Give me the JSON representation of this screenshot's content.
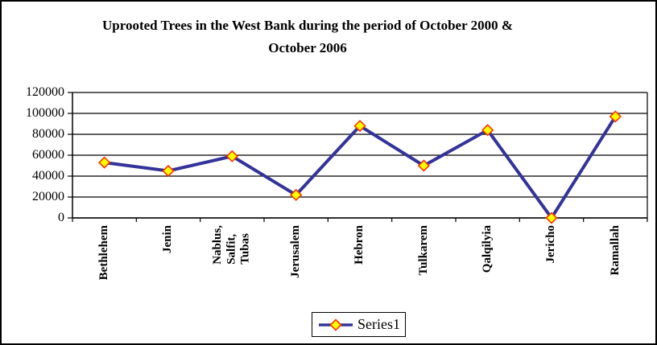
{
  "chart_data": {
    "type": "line",
    "title": "Uprooted Trees in the West Bank during the period of October 2000 & October 2006",
    "title_lines": [
      "Uprooted Trees in the West Bank during the period of October 2000 &",
      "October 2006"
    ],
    "categories": [
      "Bethlehem",
      "Jenin",
      "Nablus, Salfit, Tubas",
      "Jerusalem",
      "Hebron",
      "Tulkarem",
      "Qalqilyia",
      "Jericho",
      "Ramallah"
    ],
    "categories_display": [
      "Bethlehem",
      "Jenin",
      "Nablus,\nSalfit,\nTubas",
      "Jerusalem",
      "Hebron",
      "Tulkarem",
      "Qalqilyia",
      "Jericho",
      "Ramallah"
    ],
    "series": [
      {
        "name": "Series1",
        "values": [
          53000,
          45000,
          59000,
          22000,
          88000,
          50000,
          84000,
          0,
          97000
        ]
      }
    ],
    "xlabel": "",
    "ylabel": "",
    "ylim": [
      0,
      120000
    ],
    "ytick_interval": 20000,
    "ytick_labels": [
      "120000",
      "100000",
      "80000",
      "60000",
      "40000",
      "20000",
      "0"
    ],
    "grid": "horizontal",
    "legend": {
      "position": "bottom",
      "entries": [
        "Series1"
      ]
    },
    "colors": {
      "line": "#333399",
      "marker_fill": "#FFFF00",
      "marker_border": "#FF3300",
      "axis": "#000000",
      "background": "#FFFFFF"
    }
  }
}
